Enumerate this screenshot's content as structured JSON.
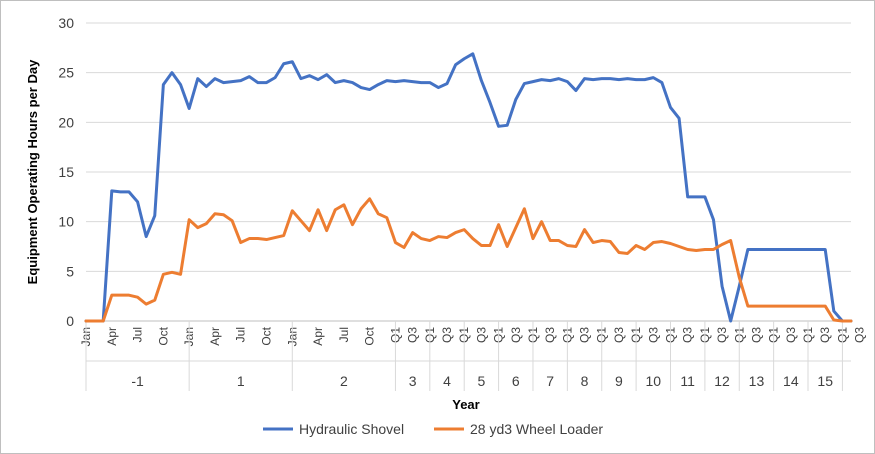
{
  "chart_data": {
    "type": "line",
    "xlabel": "Year",
    "ylabel": "Equipment Operating Hours per Day",
    "ylim": [
      0,
      30
    ],
    "yticks": [
      0,
      5,
      10,
      15,
      20,
      25,
      30
    ],
    "grid": "horizontal",
    "legend_position": "bottom",
    "x_tick_labels": [
      "Jan",
      "Apr",
      "Jul",
      "Oct",
      "Jan",
      "Apr",
      "Jul",
      "Oct",
      "Jan",
      "Apr",
      "Jul",
      "Oct",
      "Q1",
      "Q3",
      "Q1",
      "Q3",
      "Q1",
      "Q3",
      "Q1",
      "Q3",
      "Q1",
      "Q3",
      "Q1",
      "Q3",
      "Q1",
      "Q3",
      "Q1",
      "Q3",
      "Q1",
      "Q3",
      "Q1",
      "Q3",
      "Q1",
      "Q3",
      "Q1",
      "Q3",
      "Q1",
      "Q3",
      "Q1",
      "Q3"
    ],
    "x_tick_positions": [
      0,
      3,
      6,
      9,
      12,
      15,
      18,
      21,
      24,
      27,
      30,
      33,
      36,
      38,
      40,
      42,
      44,
      46,
      48,
      50,
      52,
      54,
      56,
      58,
      60,
      62,
      64,
      66,
      68,
      70,
      72,
      74,
      76,
      78,
      80,
      82,
      84,
      86,
      88,
      90
    ],
    "year_groups": [
      {
        "label": "-1",
        "start": 0,
        "end": 12
      },
      {
        "label": "1",
        "start": 12,
        "end": 24
      },
      {
        "label": "2",
        "start": 24,
        "end": 36
      },
      {
        "label": "3",
        "start": 36,
        "end": 40
      },
      {
        "label": "4",
        "start": 40,
        "end": 44
      },
      {
        "label": "5",
        "start": 44,
        "end": 48
      },
      {
        "label": "6",
        "start": 48,
        "end": 52
      },
      {
        "label": "7",
        "start": 52,
        "end": 56
      },
      {
        "label": "8",
        "start": 56,
        "end": 60
      },
      {
        "label": "9",
        "start": 60,
        "end": 64
      },
      {
        "label": "10",
        "start": 64,
        "end": 68
      },
      {
        "label": "11",
        "start": 68,
        "end": 72
      },
      {
        "label": "12",
        "start": 72,
        "end": 76
      },
      {
        "label": "13",
        "start": 76,
        "end": 80
      },
      {
        "label": "14",
        "start": 80,
        "end": 84
      },
      {
        "label": "15",
        "start": 84,
        "end": 88
      }
    ],
    "series": [
      {
        "name": "Hydraulic Shovel",
        "color": "#4472c4",
        "values": [
          0,
          0,
          0,
          13.1,
          13.0,
          13.0,
          12.0,
          8.5,
          10.6,
          23.8,
          25.0,
          23.8,
          21.4,
          24.4,
          23.6,
          24.4,
          24.0,
          24.1,
          24.2,
          24.6,
          24.0,
          24.0,
          24.5,
          25.9,
          26.1,
          24.4,
          24.7,
          24.3,
          24.8,
          24.0,
          24.2,
          24.0,
          23.5,
          23.3,
          23.8,
          24.2,
          24.1,
          24.2,
          24.1,
          24.0,
          24.0,
          23.5,
          23.9,
          25.8,
          26.4,
          26.9,
          24.2,
          22.0,
          19.6,
          19.7,
          22.3,
          23.9,
          24.1,
          24.3,
          24.2,
          24.4,
          24.1,
          23.2,
          24.4,
          24.3,
          24.4,
          24.4,
          24.3,
          24.4,
          24.3,
          24.3,
          24.5,
          24.0,
          21.5,
          20.4,
          12.5,
          12.5,
          12.5,
          10.2,
          3.5,
          0,
          3.5,
          7.2,
          7.2,
          7.2,
          7.2,
          7.2,
          7.2,
          7.2,
          7.2,
          7.2,
          7.2,
          1.0,
          0,
          0
        ]
      },
      {
        "name": "28 yd3 Wheel Loader",
        "color": "#ed7d31",
        "values": [
          0,
          0,
          0,
          2.6,
          2.6,
          2.6,
          2.4,
          1.7,
          2.1,
          4.7,
          4.9,
          4.7,
          10.2,
          9.4,
          9.8,
          10.8,
          10.7,
          10.1,
          7.9,
          8.3,
          8.3,
          8.2,
          8.4,
          8.6,
          11.1,
          10.1,
          9.1,
          11.2,
          9.1,
          11.2,
          11.7,
          9.7,
          11.3,
          12.3,
          10.8,
          10.4,
          7.9,
          7.4,
          8.9,
          8.3,
          8.1,
          8.5,
          8.4,
          8.9,
          9.2,
          8.3,
          7.6,
          7.6,
          9.7,
          7.5,
          9.4,
          11.3,
          8.3,
          10.0,
          8.1,
          8.1,
          7.6,
          7.5,
          9.2,
          7.9,
          8.1,
          8.0,
          6.9,
          6.8,
          7.6,
          7.2,
          7.9,
          8.0,
          7.8,
          7.5,
          7.2,
          7.1,
          7.2,
          7.2,
          7.7,
          8.1,
          4.4,
          1.5,
          1.5,
          1.5,
          1.5,
          1.5,
          1.5,
          1.5,
          1.5,
          1.5,
          1.5,
          0.1,
          0,
          0
        ]
      }
    ]
  }
}
